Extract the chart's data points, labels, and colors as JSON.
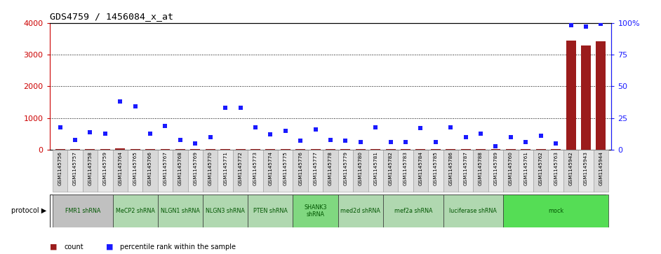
{
  "title": "GDS4759 / 1456084_x_at",
  "samples": [
    "GSM1145756",
    "GSM1145757",
    "GSM1145758",
    "GSM1145759",
    "GSM1145764",
    "GSM1145765",
    "GSM1145766",
    "GSM1145767",
    "GSM1145768",
    "GSM1145769",
    "GSM1145770",
    "GSM1145771",
    "GSM1145772",
    "GSM1145773",
    "GSM1145774",
    "GSM1145775",
    "GSM1145776",
    "GSM1145777",
    "GSM1145778",
    "GSM1145779",
    "GSM1145780",
    "GSM1145781",
    "GSM1145782",
    "GSM1145783",
    "GSM1145784",
    "GSM1145785",
    "GSM1145786",
    "GSM1145787",
    "GSM1145788",
    "GSM1145789",
    "GSM1145760",
    "GSM1145761",
    "GSM1145762",
    "GSM1145763",
    "GSM1145942",
    "GSM1145943",
    "GSM1145944"
  ],
  "counts": [
    30,
    20,
    25,
    18,
    40,
    35,
    22,
    28,
    15,
    18,
    20,
    25,
    18,
    22,
    15,
    20,
    18,
    25,
    20,
    22,
    18,
    20,
    15,
    22,
    18,
    20,
    25,
    18,
    22,
    15,
    18,
    20,
    22,
    18,
    3450,
    3280,
    3420
  ],
  "percentiles": [
    18,
    8,
    14,
    13,
    38,
    34,
    13,
    19,
    8,
    5,
    10,
    33,
    33,
    18,
    12,
    15,
    7,
    16,
    8,
    7,
    6,
    18,
    6,
    6,
    17,
    6,
    18,
    10,
    13,
    3,
    10,
    6,
    11,
    5,
    98,
    97,
    99
  ],
  "protocol_groups": [
    {
      "label": "FMR1 shRNA",
      "start": 0,
      "end": 4,
      "color": "#c0c0c0"
    },
    {
      "label": "MeCP2 shRNA",
      "start": 4,
      "end": 7,
      "color": "#b0d8b0"
    },
    {
      "label": "NLGN1 shRNA",
      "start": 7,
      "end": 10,
      "color": "#b0d8b0"
    },
    {
      "label": "NLGN3 shRNA",
      "start": 10,
      "end": 13,
      "color": "#b0d8b0"
    },
    {
      "label": "PTEN shRNA",
      "start": 13,
      "end": 16,
      "color": "#b0d8b0"
    },
    {
      "label": "SHANK3\nshRNA",
      "start": 16,
      "end": 19,
      "color": "#80d880"
    },
    {
      "label": "med2d shRNA",
      "start": 19,
      "end": 22,
      "color": "#b0d8b0"
    },
    {
      "label": "mef2a shRNA",
      "start": 22,
      "end": 26,
      "color": "#b0d8b0"
    },
    {
      "label": "luciferase shRNA",
      "start": 26,
      "end": 30,
      "color": "#b0d8b0"
    },
    {
      "label": "mock",
      "start": 30,
      "end": 37,
      "color": "#55dd55"
    }
  ],
  "ylim_left": [
    0,
    4000
  ],
  "ylim_right": [
    0,
    100
  ],
  "yticks_left": [
    0,
    1000,
    2000,
    3000,
    4000
  ],
  "yticks_right": [
    0,
    25,
    50,
    75,
    100
  ],
  "bar_color": "#9b1c1c",
  "dot_color": "#1a1aff",
  "left_axis_color": "#cc0000",
  "right_axis_color": "#1a1aff",
  "bg_color": "#ffffff",
  "protocol_label_color": "#005500",
  "grid_color": "#000000",
  "col_bg_even": "#d8d8d8",
  "col_bg_odd": "#e8e8e8"
}
